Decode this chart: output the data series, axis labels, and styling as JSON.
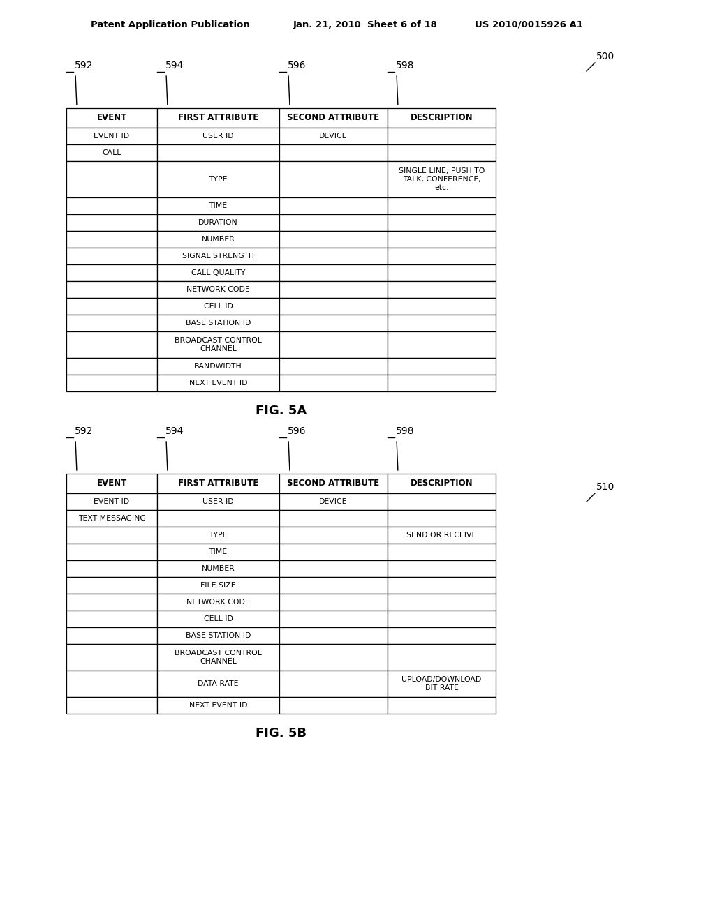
{
  "header_left": "Patent Application Publication",
  "header_mid": "Jan. 21, 2010  Sheet 6 of 18",
  "header_right": "US 2010/0015926 A1",
  "fig5a_label": "FIG. 5A",
  "fig5b_label": "FIG. 5B",
  "label_500": "500",
  "label_510": "510",
  "col_labels": [
    "592",
    "594",
    "596",
    "598"
  ],
  "headers": [
    "EVENT",
    "FIRST ATTRIBUTE",
    "SECOND ATTRIBUTE",
    "DESCRIPTION"
  ],
  "table_5a_rows": [
    [
      "EVENT ID",
      "USER ID",
      "DEVICE",
      ""
    ],
    [
      "CALL",
      "",
      "",
      ""
    ],
    [
      "",
      "TYPE",
      "",
      "SINGLE LINE, PUSH TO\nTALK, CONFERENCE,\netc."
    ],
    [
      "",
      "TIME",
      "",
      ""
    ],
    [
      "",
      "DURATION",
      "",
      ""
    ],
    [
      "",
      "NUMBER",
      "",
      ""
    ],
    [
      "",
      "SIGNAL STRENGTH",
      "",
      ""
    ],
    [
      "",
      "CALL QUALITY",
      "",
      ""
    ],
    [
      "",
      "NETWORK CODE",
      "",
      ""
    ],
    [
      "",
      "CELL ID",
      "",
      ""
    ],
    [
      "",
      "BASE STATION ID",
      "",
      ""
    ],
    [
      "",
      "BROADCAST CONTROL\nCHANNEL",
      "",
      ""
    ],
    [
      "",
      "BANDWIDTH",
      "",
      ""
    ],
    [
      "",
      "NEXT EVENT ID",
      "",
      ""
    ]
  ],
  "table_5b_rows": [
    [
      "EVENT ID",
      "USER ID",
      "DEVICE",
      ""
    ],
    [
      "TEXT MESSAGING",
      "",
      "",
      ""
    ],
    [
      "",
      "TYPE",
      "",
      "SEND OR RECEIVE"
    ],
    [
      "",
      "TIME",
      "",
      ""
    ],
    [
      "",
      "NUMBER",
      "",
      ""
    ],
    [
      "",
      "FILE SIZE",
      "",
      ""
    ],
    [
      "",
      "NETWORK CODE",
      "",
      ""
    ],
    [
      "",
      "CELL ID",
      "",
      ""
    ],
    [
      "",
      "BASE STATION ID",
      "",
      ""
    ],
    [
      "",
      "BROADCAST CONTROL\nCHANNEL",
      "",
      ""
    ],
    [
      "",
      "DATA RATE",
      "",
      "UPLOAD/DOWNLOAD\nBIT RATE"
    ],
    [
      "",
      "NEXT EVENT ID",
      "",
      ""
    ]
  ],
  "bg_color": "#ffffff",
  "line_color": "#000000",
  "text_color": "#000000"
}
